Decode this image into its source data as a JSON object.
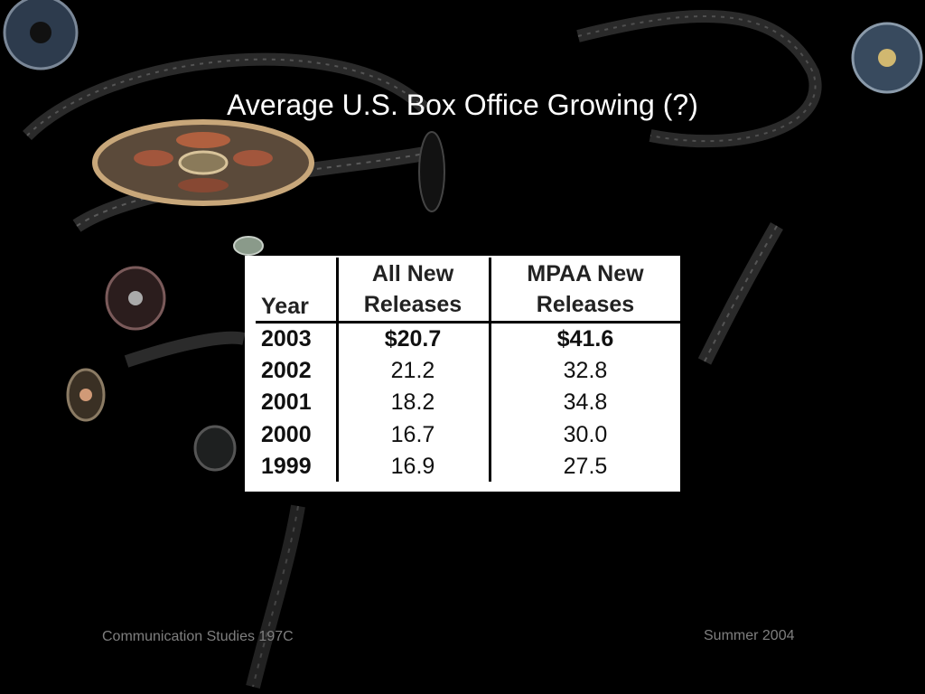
{
  "slide": {
    "title": "Average U.S. Box Office Growing (?)",
    "footer_left": "Communication Studies 197C",
    "footer_right": "Summer 2004"
  },
  "table": {
    "headers": {
      "year": "Year",
      "all_new_line1": "All New",
      "all_new_line2": "Releases",
      "mpaa_line1": "MPAA New",
      "mpaa_line2": "Releases"
    },
    "rows": [
      {
        "year": "2003",
        "all_new": "$20.7",
        "mpaa": "$41.6",
        "emphasis": true
      },
      {
        "year": "2002",
        "all_new": "21.2",
        "mpaa": "32.8",
        "emphasis": false
      },
      {
        "year": "2001",
        "all_new": "18.2",
        "mpaa": "34.8",
        "emphasis": false
      },
      {
        "year": "2000",
        "all_new": "16.7",
        "mpaa": "30.0",
        "emphasis": false
      },
      {
        "year": "1999",
        "all_new": "16.9",
        "mpaa": "27.5",
        "emphasis": false
      }
    ]
  },
  "colors": {
    "background": "#000000",
    "title": "#ffffff",
    "footer": "#7f7f7f",
    "table_bg": "#ffffff"
  }
}
